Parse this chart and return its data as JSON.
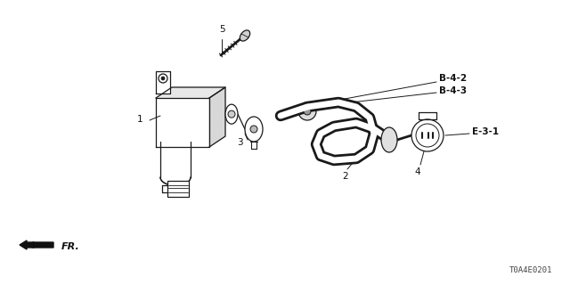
{
  "background_color": "#ffffff",
  "fig_width": 6.4,
  "fig_height": 3.2,
  "dpi": 100,
  "part_number": "T0A4E0201",
  "line_color": "#1a1a1a",
  "text_color": "#111111",
  "bold_labels": [
    "B-4-2",
    "B-4-3",
    "E-3-1"
  ],
  "number_labels": [
    "1",
    "2",
    "3",
    "4",
    "5"
  ]
}
